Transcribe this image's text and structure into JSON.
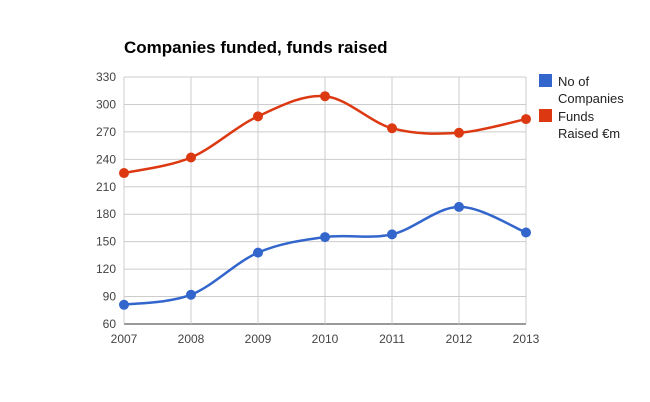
{
  "colors": {
    "companies": "#3366cc",
    "funds": "#dc3912",
    "grid": "#cccccc",
    "axis": "#333333"
  },
  "chart_data": {
    "type": "line",
    "title": "Companies funded, funds raised",
    "xlabel": "",
    "ylabel": "",
    "categories": [
      "2007",
      "2008",
      "2009",
      "2010",
      "2011",
      "2012",
      "2013"
    ],
    "ylim": [
      60,
      330
    ],
    "yticks": [
      60,
      90,
      120,
      150,
      180,
      210,
      240,
      270,
      300,
      330
    ],
    "grid": true,
    "legend_position": "right",
    "series": [
      {
        "name_lines": [
          "No of",
          "Companies"
        ],
        "color": "#3366cc",
        "values": [
          81,
          92,
          138,
          155,
          158,
          188,
          160
        ]
      },
      {
        "name_lines": [
          "Funds",
          "Raised €m"
        ],
        "color": "#dc3912",
        "values": [
          225,
          242,
          287,
          309,
          274,
          269,
          284
        ]
      }
    ]
  }
}
